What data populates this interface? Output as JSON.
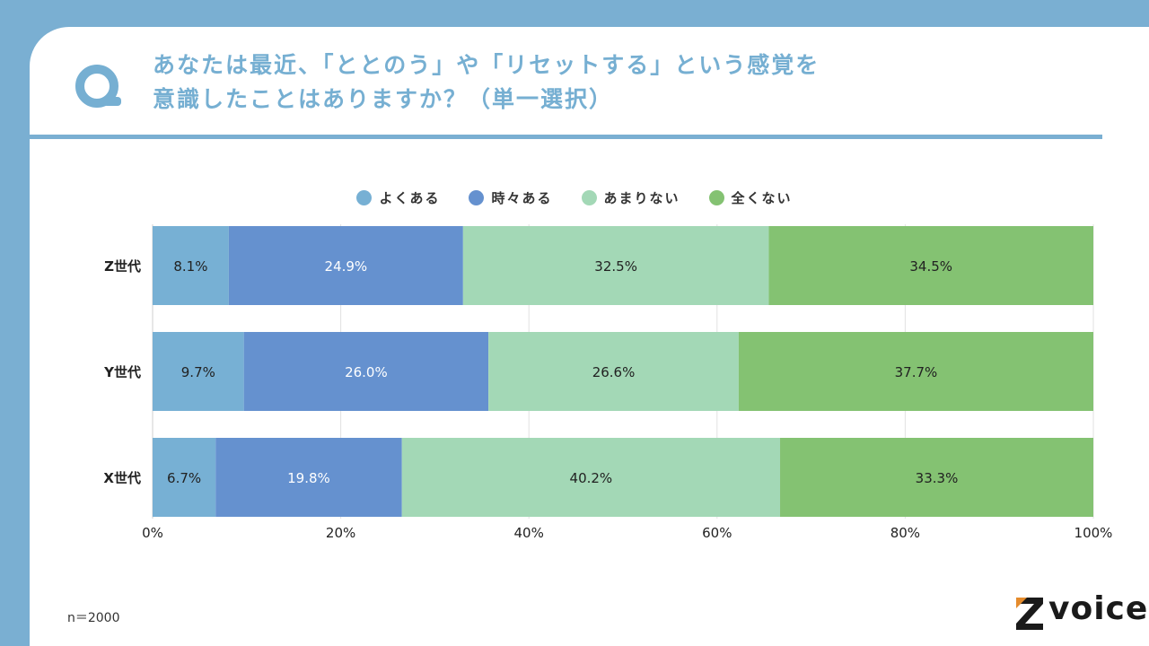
{
  "header": {
    "title_line1": "あなたは最近、「ととのう」や「リセットする」という感覚を",
    "title_line2": "意識したことはありますか？（単一選択）"
  },
  "footnote": "n＝2000",
  "logo": {
    "text": "voice",
    "letter": "Z"
  },
  "colors": {
    "background": "#7aafd2",
    "title": "#76afd2",
    "series": [
      "#77b0d4",
      "#6591cf",
      "#a3d8b6",
      "#84c272"
    ],
    "label_light": "#ffffff",
    "label_dark": "#222222"
  },
  "chart_data": {
    "type": "bar",
    "orientation": "horizontal",
    "stacked": true,
    "categories": [
      "Z世代",
      "Y世代",
      "X世代"
    ],
    "series": [
      {
        "name": "よくある",
        "values": [
          8.1,
          9.7,
          6.7
        ]
      },
      {
        "name": "時々ある",
        "values": [
          24.9,
          26.0,
          19.8
        ]
      },
      {
        "name": "あまりない",
        "values": [
          32.5,
          26.6,
          40.2
        ]
      },
      {
        "name": "全くない",
        "values": [
          34.5,
          37.7,
          33.3
        ]
      }
    ],
    "xlim": [
      0,
      100
    ],
    "xticks": [
      0,
      20,
      40,
      60,
      80,
      100
    ],
    "tick_labels": [
      "0%",
      "20%",
      "40%",
      "60%",
      "80%",
      "100%"
    ],
    "grid": true,
    "legend_position": "top-center"
  }
}
